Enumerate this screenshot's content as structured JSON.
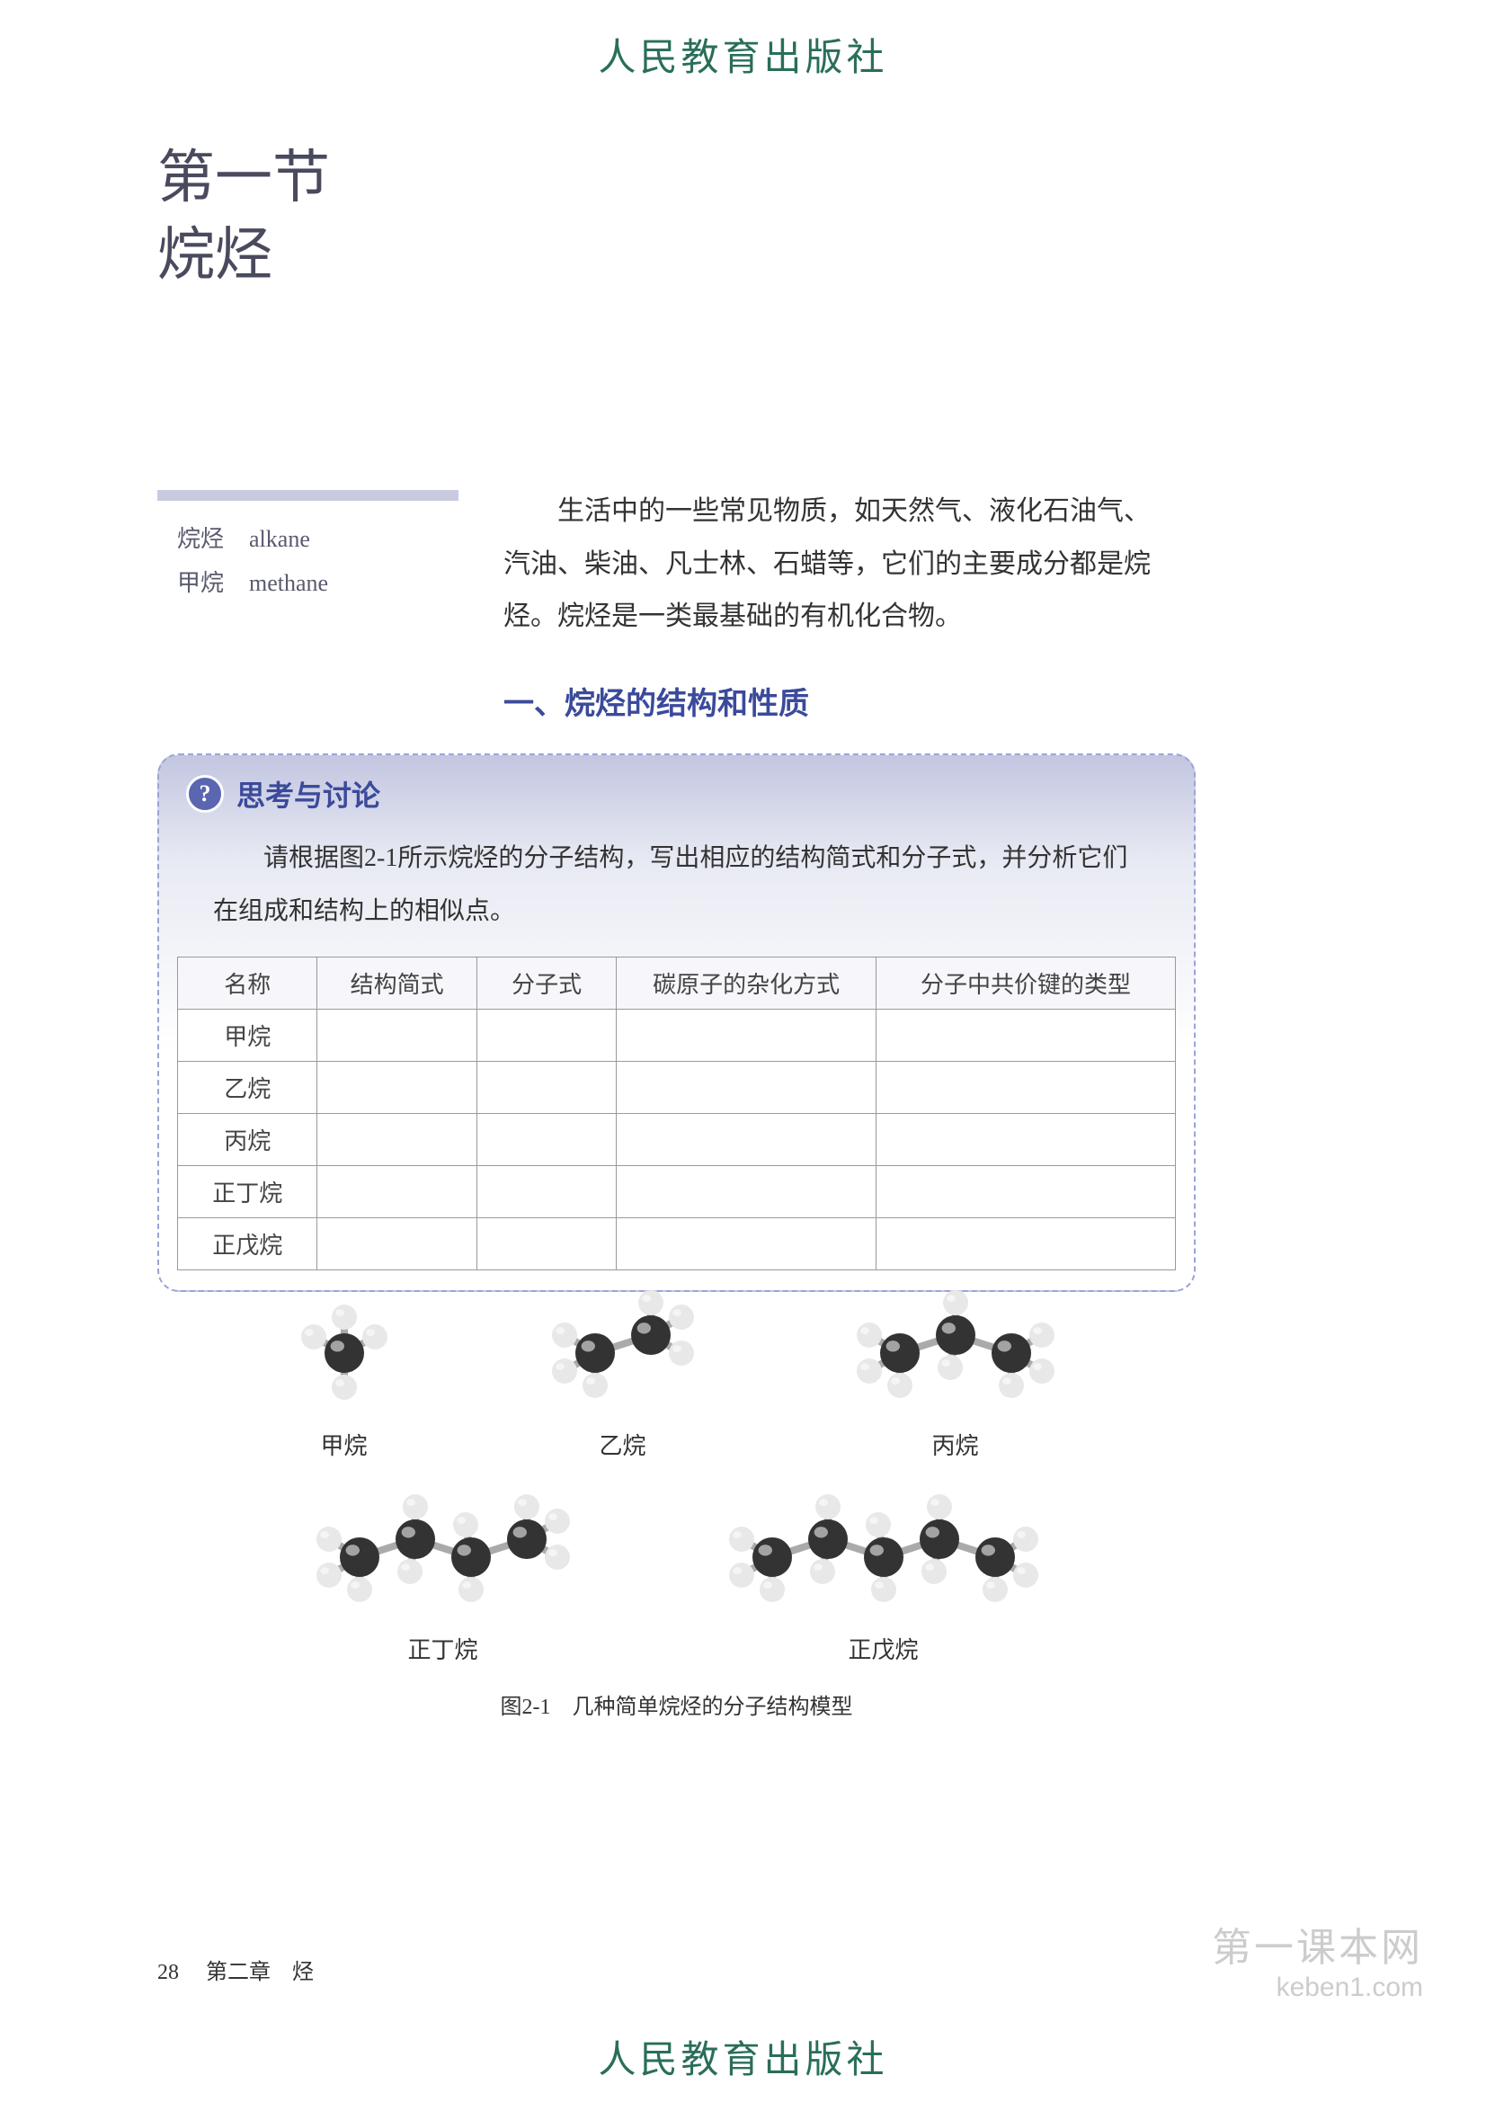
{
  "publisher": "人民教育出版社",
  "section_number": "第一节",
  "section_title": "烷烃",
  "vocab": [
    {
      "cn": "烷烃",
      "en": "alkane"
    },
    {
      "cn": "甲烷",
      "en": "methane"
    }
  ],
  "intro": "生活中的一些常见物质，如天然气、液化石油气、汽油、柴油、凡士林、石蜡等，它们的主要成分都是烷烃。烷烃是一类最基础的有机化合物。",
  "subsection": "一、烷烃的结构和性质",
  "discussion": {
    "heading": "思考与讨论",
    "prompt": "请根据图2-1所示烷烃的分子结构，写出相应的结构简式和分子式，并分析它们在组成和结构上的相似点。",
    "columns": [
      "名称",
      "结构简式",
      "分子式",
      "碳原子的杂化方式",
      "分子中共价键的类型"
    ],
    "rows": [
      "甲烷",
      "乙烷",
      "丙烷",
      "正丁烷",
      "正戊烷"
    ]
  },
  "figure": {
    "labels": [
      "甲烷",
      "乙烷",
      "丙烷",
      "正丁烷",
      "正戊烷"
    ],
    "caption": "图2-1　几种简单烷烃的分子结构模型",
    "carbon_color": "#333333",
    "hydrogen_color": "#e8e8e8",
    "carbon_radius": 22,
    "hydrogen_radius": 14,
    "bond_color": "#aaaaaa",
    "bond_width": 8
  },
  "footer": {
    "page": "28",
    "chapter": "第二章　烃"
  },
  "watermark": {
    "line1": "第一课本网",
    "line2": "keben1.com"
  }
}
